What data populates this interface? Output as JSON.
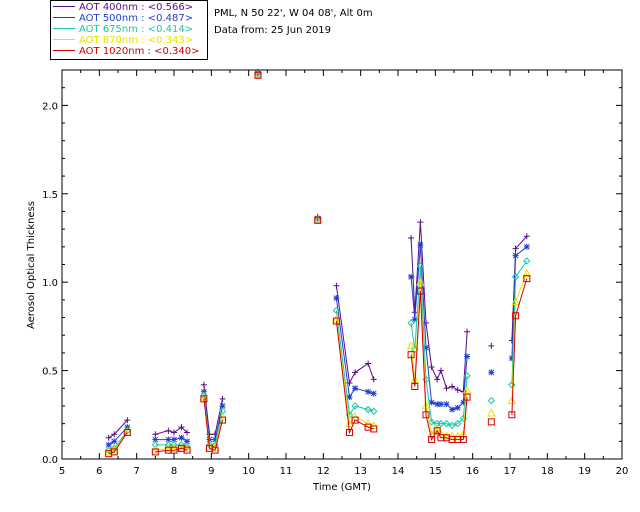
{
  "header": {
    "location": "PML, N 50 22', W 04 08', Alt 0m",
    "date_line": "Data from: 25 Jun 2019"
  },
  "legend": [
    {
      "label": "AOT  400nm : <0.566>",
      "color": "#5a0a8c"
    },
    {
      "label": "AOT  500nm : <0.487>",
      "color": "#1f3fd4"
    },
    {
      "label": "AOT  675nm : <0.414>",
      "color": "#19c8a8"
    },
    {
      "label": "AOT  870nm : <0.343>",
      "color": "#e8e200"
    },
    {
      "label": "AOT 1020nm : <0.340>",
      "color": "#d40000"
    }
  ],
  "chart_data": {
    "type": "line",
    "title": "",
    "xlabel": "Time (GMT)",
    "ylabel": "Aerosol Optical Thickness",
    "xlim": [
      5,
      20
    ],
    "ylim": [
      0,
      2.2
    ],
    "xticks": [
      5,
      6,
      7,
      8,
      9,
      10,
      11,
      12,
      13,
      14,
      15,
      16,
      17,
      18,
      19,
      20
    ],
    "yticks": [
      0.0,
      0.5,
      1.0,
      1.5,
      2.0
    ],
    "ytick_labels": [
      "0.0",
      "0.5",
      "1.0",
      "1.5",
      "2.0"
    ],
    "grid": false,
    "legend_position": "top-left",
    "series": [
      {
        "name": "AOT  400nm : <0.566>",
        "color": "#5a0a8c",
        "marker": "plus",
        "points": [
          [
            6.25,
            0.12
          ],
          [
            6.4,
            0.14
          ],
          [
            6.75,
            0.22
          ],
          [
            7.5,
            0.14
          ],
          [
            7.85,
            0.16
          ],
          [
            8.0,
            0.15
          ],
          [
            8.2,
            0.18
          ],
          [
            8.35,
            0.15
          ],
          [
            8.8,
            0.42
          ],
          [
            8.95,
            0.14
          ],
          [
            9.1,
            0.14
          ],
          [
            9.3,
            0.34
          ],
          [
            10.25,
            2.19
          ],
          [
            11.85,
            1.37
          ],
          [
            12.35,
            0.98
          ],
          [
            12.7,
            0.43
          ],
          [
            12.85,
            0.49
          ],
          [
            13.2,
            0.54
          ],
          [
            13.35,
            0.45
          ],
          [
            14.35,
            1.25
          ],
          [
            14.45,
            0.83
          ],
          [
            14.6,
            1.34
          ],
          [
            14.75,
            0.77
          ],
          [
            14.9,
            0.52
          ],
          [
            15.05,
            0.45
          ],
          [
            15.15,
            0.5
          ],
          [
            15.3,
            0.4
          ],
          [
            15.45,
            0.41
          ],
          [
            15.6,
            0.39
          ],
          [
            15.75,
            0.38
          ],
          [
            15.85,
            0.72
          ],
          [
            16.5,
            0.64
          ],
          [
            17.05,
            0.67
          ],
          [
            17.15,
            1.19
          ],
          [
            17.45,
            1.26
          ]
        ]
      },
      {
        "name": "AOT  500nm : <0.487>",
        "color": "#1f3fd4",
        "marker": "asterisk",
        "points": [
          [
            6.25,
            0.08
          ],
          [
            6.4,
            0.1
          ],
          [
            6.75,
            0.18
          ],
          [
            7.5,
            0.11
          ],
          [
            7.85,
            0.11
          ],
          [
            8.0,
            0.11
          ],
          [
            8.2,
            0.12
          ],
          [
            8.35,
            0.1
          ],
          [
            8.8,
            0.38
          ],
          [
            8.95,
            0.11
          ],
          [
            9.1,
            0.11
          ],
          [
            9.3,
            0.3
          ],
          [
            10.25,
            2.18
          ],
          [
            11.85,
            1.36
          ],
          [
            12.35,
            0.91
          ],
          [
            12.7,
            0.35
          ],
          [
            12.85,
            0.4
          ],
          [
            13.2,
            0.38
          ],
          [
            13.35,
            0.37
          ],
          [
            14.35,
            1.03
          ],
          [
            14.45,
            0.79
          ],
          [
            14.6,
            1.21
          ],
          [
            14.75,
            0.63
          ],
          [
            14.9,
            0.32
          ],
          [
            15.05,
            0.31
          ],
          [
            15.15,
            0.31
          ],
          [
            15.3,
            0.31
          ],
          [
            15.45,
            0.28
          ],
          [
            15.6,
            0.29
          ],
          [
            15.75,
            0.32
          ],
          [
            15.85,
            0.58
          ],
          [
            16.5,
            0.49
          ],
          [
            17.05,
            0.57
          ],
          [
            17.15,
            1.15
          ],
          [
            17.45,
            1.2
          ]
        ]
      },
      {
        "name": "AOT  675nm : <0.414>",
        "color": "#19c8a8",
        "marker": "diamond",
        "points": [
          [
            6.25,
            0.05
          ],
          [
            6.4,
            0.06
          ],
          [
            6.75,
            0.16
          ],
          [
            7.5,
            0.08
          ],
          [
            7.85,
            0.08
          ],
          [
            8.0,
            0.08
          ],
          [
            8.2,
            0.08
          ],
          [
            8.35,
            0.07
          ],
          [
            8.8,
            0.36
          ],
          [
            8.95,
            0.08
          ],
          [
            9.1,
            0.08
          ],
          [
            9.3,
            0.27
          ],
          [
            10.25,
            2.17
          ],
          [
            11.85,
            1.35
          ],
          [
            12.35,
            0.84
          ],
          [
            12.7,
            0.25
          ],
          [
            12.85,
            0.3
          ],
          [
            13.2,
            0.28
          ],
          [
            13.35,
            0.27
          ],
          [
            14.35,
            0.77
          ],
          [
            14.45,
            0.62
          ],
          [
            14.6,
            1.09
          ],
          [
            14.75,
            0.45
          ],
          [
            14.9,
            0.21
          ],
          [
            15.05,
            0.2
          ],
          [
            15.15,
            0.2
          ],
          [
            15.3,
            0.2
          ],
          [
            15.45,
            0.19
          ],
          [
            15.6,
            0.2
          ],
          [
            15.75,
            0.23
          ],
          [
            15.85,
            0.47
          ],
          [
            16.5,
            0.33
          ],
          [
            17.05,
            0.42
          ],
          [
            17.15,
            1.03
          ],
          [
            17.45,
            1.12
          ]
        ]
      },
      {
        "name": "AOT  870nm : <0.343>",
        "color": "#e8e200",
        "marker": "triangle",
        "points": [
          [
            6.25,
            0.04
          ],
          [
            6.4,
            0.05
          ],
          [
            6.75,
            0.15
          ],
          [
            7.5,
            0.05
          ],
          [
            7.85,
            0.06
          ],
          [
            8.0,
            0.06
          ],
          [
            8.2,
            0.06
          ],
          [
            8.35,
            0.06
          ],
          [
            8.8,
            0.35
          ],
          [
            8.95,
            0.07
          ],
          [
            9.1,
            0.06
          ],
          [
            9.3,
            0.24
          ],
          [
            10.25,
            2.17
          ],
          [
            11.85,
            1.35
          ],
          [
            12.35,
            0.79
          ],
          [
            12.7,
            0.2
          ],
          [
            12.85,
            0.24
          ],
          [
            13.2,
            0.2
          ],
          [
            13.35,
            0.19
          ],
          [
            14.35,
            0.64
          ],
          [
            14.45,
            0.45
          ],
          [
            14.6,
            1.0
          ],
          [
            14.75,
            0.3
          ],
          [
            14.9,
            0.14
          ],
          [
            15.05,
            0.17
          ],
          [
            15.15,
            0.14
          ],
          [
            15.3,
            0.13
          ],
          [
            15.45,
            0.13
          ],
          [
            15.6,
            0.13
          ],
          [
            15.75,
            0.14
          ],
          [
            15.85,
            0.39
          ],
          [
            16.5,
            0.26
          ],
          [
            17.05,
            0.33
          ],
          [
            17.15,
            0.89
          ],
          [
            17.45,
            1.05
          ]
        ]
      },
      {
        "name": "AOT 1020nm : <0.340>",
        "color": "#d40000",
        "marker": "square",
        "points": [
          [
            6.25,
            0.03
          ],
          [
            6.4,
            0.04
          ],
          [
            6.75,
            0.15
          ],
          [
            7.5,
            0.04
          ],
          [
            7.85,
            0.05
          ],
          [
            8.0,
            0.05
          ],
          [
            8.2,
            0.06
          ],
          [
            8.35,
            0.05
          ],
          [
            8.8,
            0.34
          ],
          [
            8.95,
            0.06
          ],
          [
            9.1,
            0.05
          ],
          [
            9.3,
            0.22
          ],
          [
            10.25,
            2.17
          ],
          [
            11.85,
            1.35
          ],
          [
            12.35,
            0.78
          ],
          [
            12.7,
            0.15
          ],
          [
            12.85,
            0.22
          ],
          [
            13.2,
            0.18
          ],
          [
            13.35,
            0.17
          ],
          [
            14.35,
            0.59
          ],
          [
            14.45,
            0.41
          ],
          [
            14.6,
            0.95
          ],
          [
            14.75,
            0.25
          ],
          [
            14.9,
            0.11
          ],
          [
            15.05,
            0.16
          ],
          [
            15.15,
            0.12
          ],
          [
            15.3,
            0.12
          ],
          [
            15.45,
            0.11
          ],
          [
            15.6,
            0.11
          ],
          [
            15.75,
            0.11
          ],
          [
            15.85,
            0.35
          ],
          [
            16.5,
            0.21
          ],
          [
            17.05,
            0.25
          ],
          [
            17.15,
            0.81
          ],
          [
            17.45,
            1.02
          ]
        ]
      }
    ]
  }
}
